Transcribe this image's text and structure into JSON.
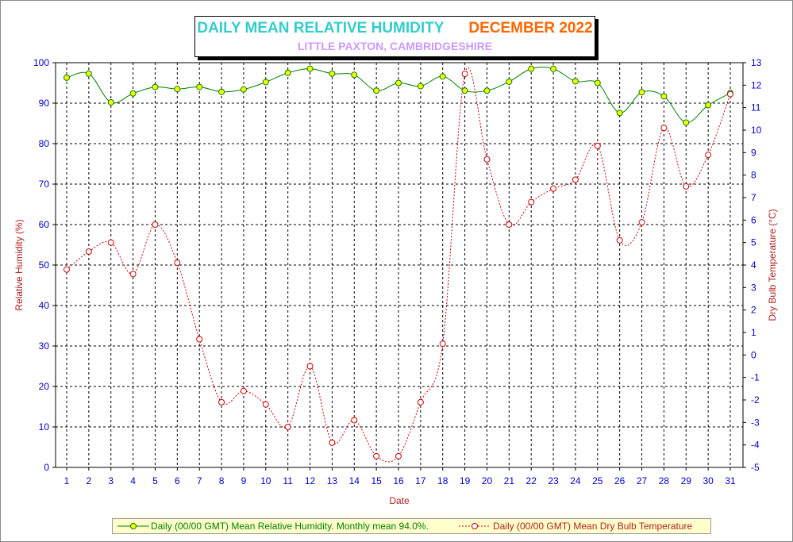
{
  "chart_data": {
    "type": "line",
    "title": "DAILY MEAN RELATIVE HUMIDITY",
    "title_period": "DECEMBER 2022",
    "subtitle": "LITTLE PAXTON, CAMBRIDGESHIRE",
    "xlabel": "Date",
    "ylabel_left": "Relative Humidity (%)",
    "ylabel_right": "Dry Bulb Temperature (°C)",
    "x": [
      1,
      2,
      3,
      4,
      5,
      6,
      7,
      8,
      9,
      10,
      11,
      12,
      13,
      14,
      15,
      16,
      17,
      18,
      19,
      20,
      21,
      22,
      23,
      24,
      25,
      26,
      27,
      28,
      29,
      30,
      31
    ],
    "ylim_left": [
      0,
      100
    ],
    "yticks_left": [
      0,
      10,
      20,
      30,
      40,
      50,
      60,
      70,
      80,
      90,
      100
    ],
    "ylim_right": [
      -5,
      13
    ],
    "yticks_right": [
      -5,
      -4,
      -3,
      -2,
      -1,
      0,
      1,
      2,
      3,
      4,
      5,
      6,
      7,
      8,
      9,
      10,
      11,
      12,
      13
    ],
    "grid": true,
    "legend_position": "bottom",
    "series": [
      {
        "name": "Daily (00/00 GMT) Mean Relative Humidity. Monthly mean 94.0%.",
        "axis": "left",
        "color": "#008000",
        "marker_color": "#ffff00",
        "values": [
          96.3,
          97.3,
          90.2,
          92.4,
          94.0,
          93.5,
          94.0,
          92.8,
          93.4,
          95.2,
          97.5,
          98.5,
          97.3,
          97.0,
          93.1,
          95.0,
          94.2,
          96.6,
          93.1,
          93.1,
          95.3,
          98.5,
          98.5,
          95.4,
          95.0,
          87.6,
          92.7,
          91.7,
          85.2,
          89.5,
          92.5
        ]
      },
      {
        "name": "Daily (00/00 GMT) Mean Dry Bulb Temperature",
        "axis": "right",
        "color": "#cc0000",
        "marker_color": "#ffffff",
        "values": [
          3.8,
          4.6,
          5.0,
          3.6,
          5.8,
          4.1,
          0.7,
          -2.1,
          -1.6,
          -2.2,
          -3.2,
          -0.5,
          -3.9,
          -2.9,
          -4.5,
          -4.5,
          -2.1,
          0.5,
          12.5,
          8.7,
          5.8,
          6.8,
          7.4,
          7.8,
          9.3,
          5.1,
          5.9,
          10.1,
          7.5,
          8.9,
          11.6
        ]
      }
    ]
  }
}
